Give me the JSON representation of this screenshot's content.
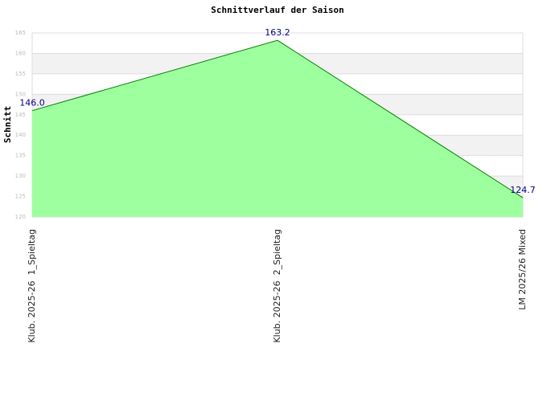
{
  "chart_data": {
    "type": "area",
    "title": "Schnittverlauf der Saison",
    "ylabel": "Schnitt",
    "categories": [
      "Klub. 2025-26  1_Spieltag",
      "Klub. 2025-26  2_Spieltag",
      "LM 2025/26 Mixed"
    ],
    "series": [
      {
        "name": "Schnitt",
        "color": "#99ff99",
        "values": [
          146,
          163.2,
          124.7
        ],
        "value_labels": [
          "146.0",
          "163.2",
          "124.7"
        ]
      }
    ],
    "ylim": [
      120,
      165
    ],
    "yticks": [
      120,
      125,
      130,
      135,
      140,
      145,
      150,
      155,
      160,
      165
    ],
    "grid": true
  }
}
